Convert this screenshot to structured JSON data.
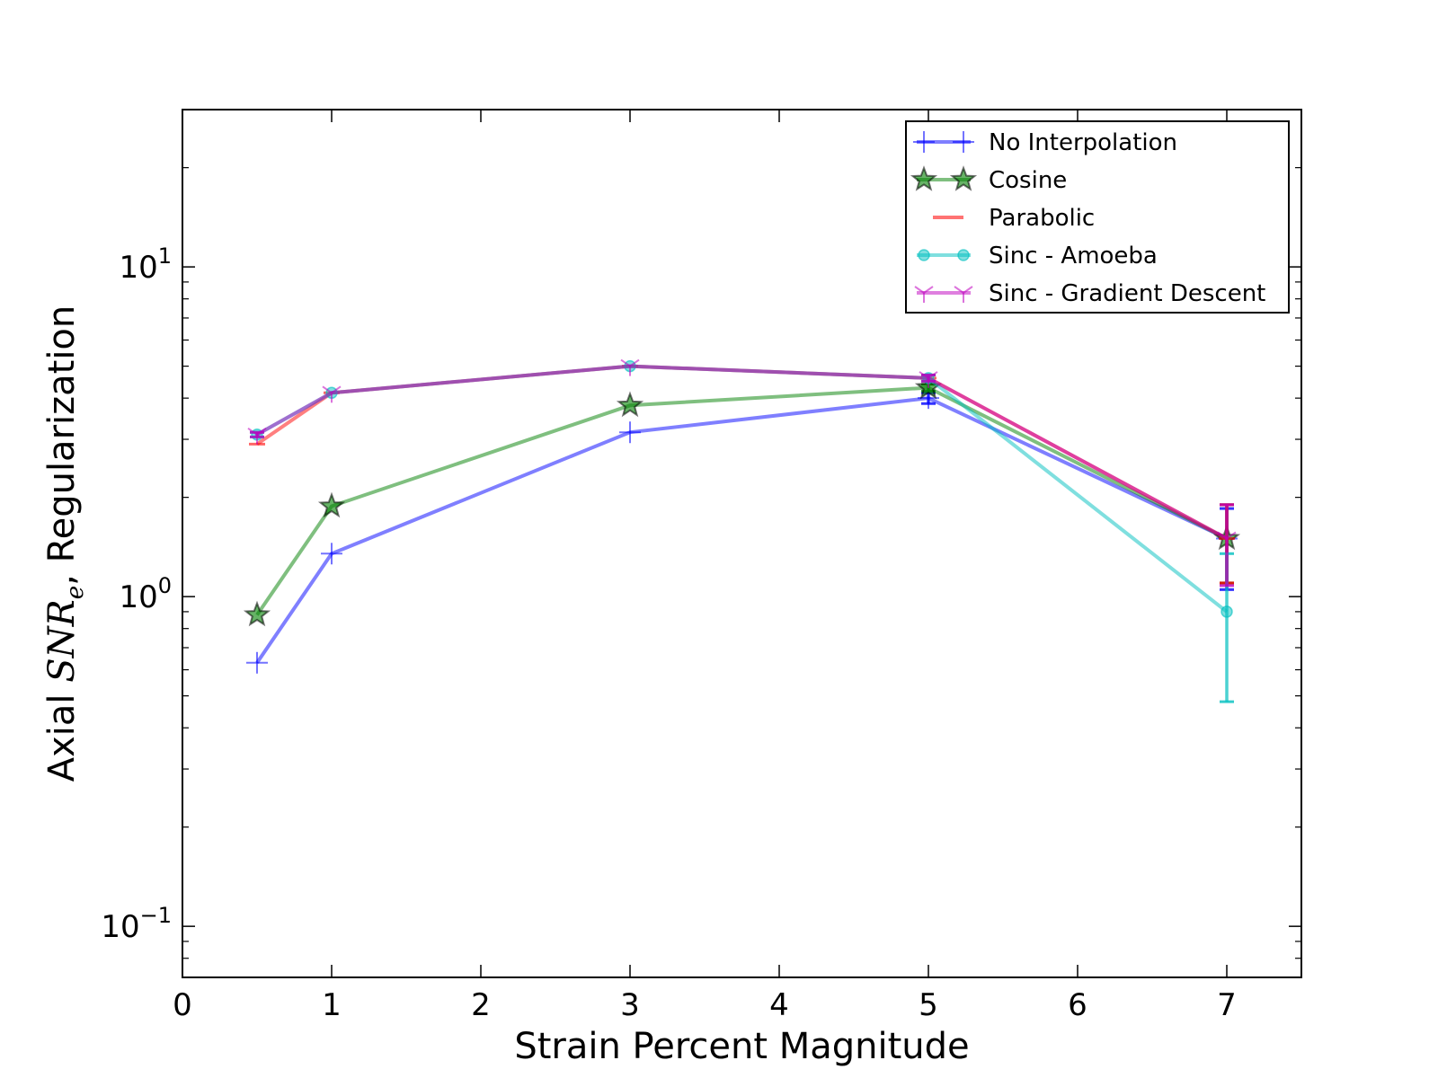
{
  "chart_data": {
    "type": "line",
    "xlabel": "Strain Percent Magnitude",
    "ylabel_prefix": "Axial ",
    "ylabel_math": "SNR",
    "ylabel_sub": "e",
    "ylabel_suffix": ", Regularization",
    "xlim": [
      0,
      7.5
    ],
    "ylim": [
      0.07,
      30
    ],
    "yscale": "log",
    "x_ticks": [
      0,
      1,
      2,
      3,
      4,
      5,
      6,
      7
    ],
    "x_tick_labels": [
      "0",
      "1",
      "2",
      "3",
      "4",
      "5",
      "6",
      "7"
    ],
    "y_ticks": [
      0.1,
      1,
      10
    ],
    "y_tick_bases": [
      "10",
      "10",
      "10"
    ],
    "y_tick_exps": [
      "−1",
      "0",
      "1"
    ],
    "legend_position": "upper right",
    "x": [
      0.5,
      1,
      3,
      5,
      7
    ],
    "series": [
      {
        "name": "No Interpolation",
        "color": "#0000ff",
        "marker": "plus",
        "values": [
          0.63,
          1.35,
          3.15,
          4.0,
          1.5
        ],
        "err_low": [
          0.63,
          1.35,
          3.15,
          3.85,
          1.05
        ],
        "err_high": [
          0.63,
          1.35,
          3.15,
          4.15,
          1.85
        ]
      },
      {
        "name": "Cosine",
        "color": "#008000",
        "marker": "star",
        "values": [
          0.88,
          1.88,
          3.8,
          4.3,
          1.5
        ],
        "err_low": [
          0.88,
          1.88,
          3.8,
          4.2,
          1.1
        ],
        "err_high": [
          0.88,
          1.88,
          3.8,
          4.4,
          1.9
        ]
      },
      {
        "name": "Parabolic",
        "color": "#ff0000",
        "marker": "hline",
        "values": [
          2.9,
          4.15,
          5.0,
          4.6,
          1.5
        ],
        "err_low": [
          2.9,
          4.15,
          5.0,
          4.5,
          1.1
        ],
        "err_high": [
          2.9,
          4.15,
          5.0,
          4.7,
          1.9
        ]
      },
      {
        "name": "Sinc - Amoeba",
        "color": "#00bfbf",
        "marker": "circle",
        "values": [
          3.1,
          4.15,
          5.0,
          4.6,
          0.9
        ],
        "err_low": [
          3.05,
          4.15,
          5.0,
          4.5,
          0.48
        ],
        "err_high": [
          3.15,
          4.15,
          5.0,
          4.7,
          1.35
        ]
      },
      {
        "name": "Sinc - Gradient Descent",
        "color": "#bf00bf",
        "marker": "tri",
        "values": [
          3.1,
          4.15,
          5.0,
          4.6,
          1.5
        ],
        "err_low": [
          3.05,
          4.15,
          5.0,
          4.5,
          1.08
        ],
        "err_high": [
          3.15,
          4.15,
          5.0,
          4.7,
          1.9
        ]
      }
    ]
  }
}
